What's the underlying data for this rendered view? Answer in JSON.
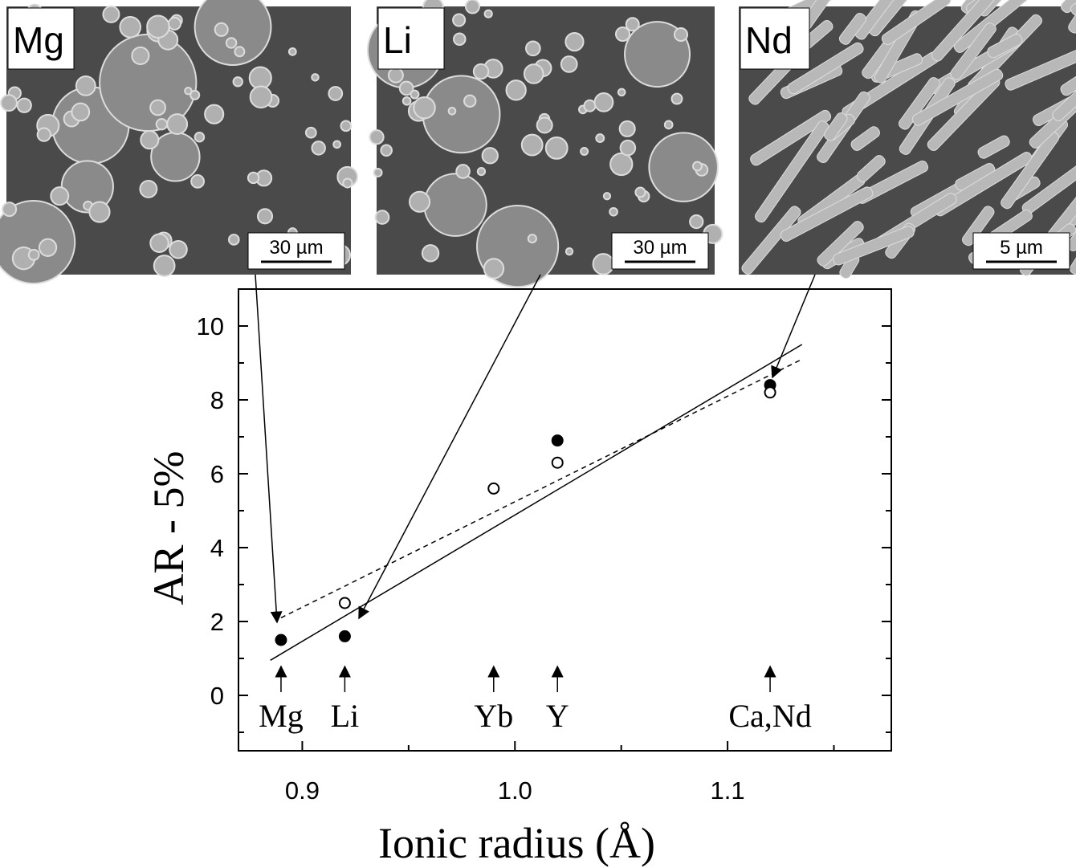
{
  "chart_data": {
    "type": "scatter",
    "xlabel": "Ionic radius (Å)",
    "ylabel": "AR - 5%",
    "xlim": [
      0.87,
      1.177
    ],
    "ylim": [
      -1.5,
      11
    ],
    "xticks": [
      0.9,
      {
        "value": 1,
        "label": "1.0"
      },
      1.1
    ],
    "xminor": [
      0.95,
      1.05,
      1.15
    ],
    "yticks": [
      0,
      2,
      4,
      6,
      8,
      10
    ],
    "yminor": [
      -1,
      1,
      3,
      5,
      7,
      9
    ],
    "series": [
      {
        "marker": "filled",
        "color": "#000000",
        "x": [
          0.89,
          0.92,
          1.02,
          1.12
        ],
        "values": [
          1.5,
          1.6,
          6.9,
          8.4
        ]
      },
      {
        "marker": "open",
        "color": "#000000",
        "x": [
          0.92,
          0.99,
          1.02,
          1.12
        ],
        "values": [
          2.5,
          5.6,
          6.3,
          8.2
        ]
      }
    ],
    "lines": [
      {
        "style": "solid",
        "x": [
          0.885,
          1.135
        ],
        "values": [
          0.95,
          9.5
        ]
      },
      {
        "style": "dashed",
        "x": [
          0.89,
          1.135
        ],
        "values": [
          2.1,
          9.1
        ]
      }
    ],
    "annotations": [
      {
        "text": "Mg",
        "x": 0.89
      },
      {
        "text": "Li",
        "x": 0.92
      },
      {
        "text": "Yb",
        "x": 0.99
      },
      {
        "text": "Y",
        "x": 1.02
      },
      {
        "text": "Ca,Nd",
        "x": 1.12
      }
    ],
    "images": [
      {
        "label": "Mg",
        "scale": "30 µm"
      },
      {
        "label": "Li",
        "scale": "30 µm"
      },
      {
        "label": "Nd",
        "scale": "5 µm"
      }
    ]
  }
}
